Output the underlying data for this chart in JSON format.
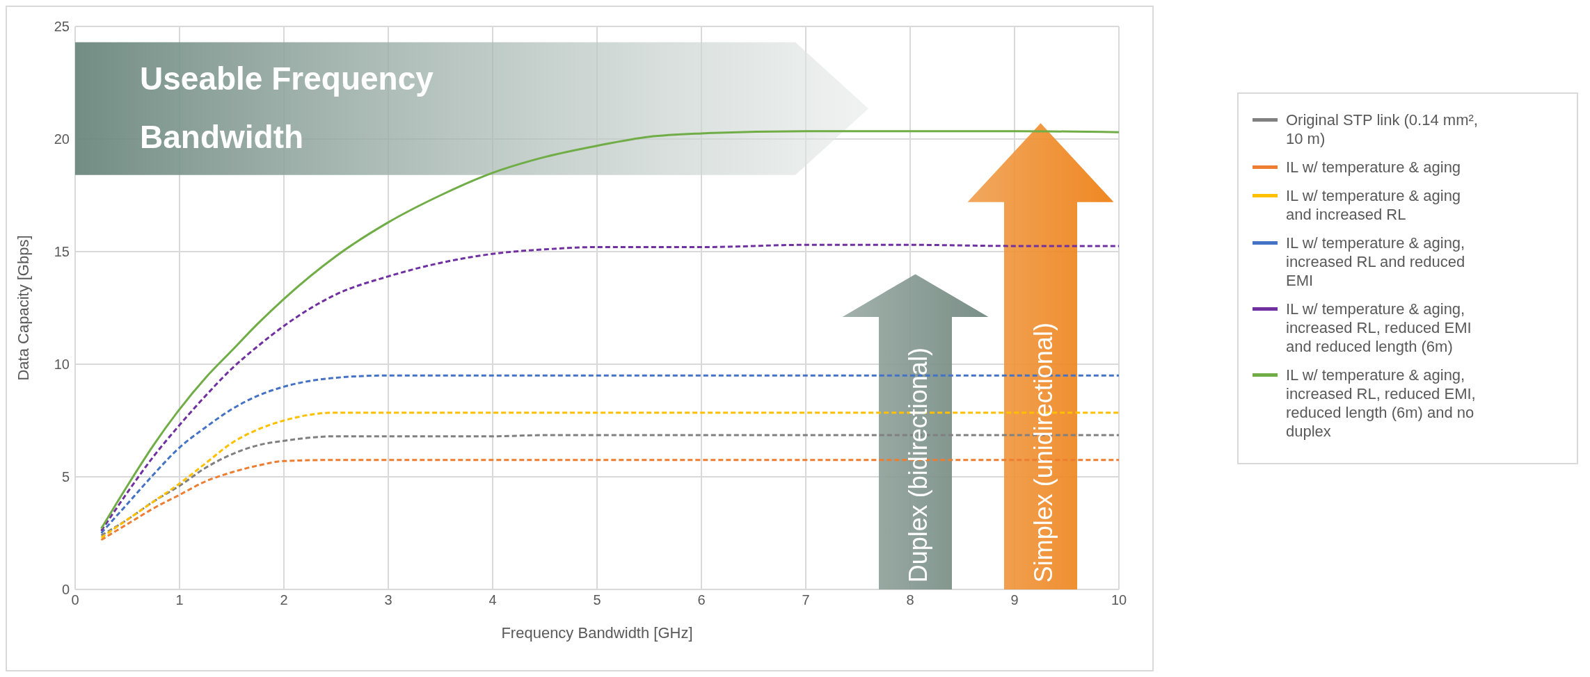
{
  "chart_data": {
    "type": "line",
    "xlabel": "Frequency Bandwidth [GHz]",
    "ylabel": "Data Capacity [Gbps]",
    "x": [
      0.25,
      0.5,
      0.75,
      1,
      1.25,
      1.5,
      1.75,
      2,
      2.5,
      3,
      3.5,
      4,
      4.5,
      5,
      5.5,
      6,
      7,
      8,
      9,
      10
    ],
    "series": [
      {
        "name": "Original STP link (0.14 mm², 10 m)",
        "color": "#808080",
        "line_style": "dashed",
        "values": [
          2.4,
          3.1,
          3.9,
          4.6,
          5.4,
          6.0,
          6.4,
          6.6,
          6.8,
          6.8,
          6.8,
          6.8,
          6.85,
          6.85,
          6.85,
          6.85,
          6.85,
          6.85,
          6.85,
          6.85
        ]
      },
      {
        "name": "IL w/ temperature & aging",
        "color": "#ed7d31",
        "line_style": "dashed",
        "values": [
          2.2,
          2.9,
          3.6,
          4.2,
          4.8,
          5.2,
          5.5,
          5.7,
          5.75,
          5.75,
          5.75,
          5.75,
          5.75,
          5.75,
          5.75,
          5.75,
          5.75,
          5.75,
          5.75,
          5.75
        ]
      },
      {
        "name": "IL w/ temperature & aging and increased RL",
        "color": "#ffc000",
        "line_style": "dashed",
        "values": [
          2.3,
          3.1,
          3.9,
          4.7,
          5.6,
          6.5,
          7.1,
          7.5,
          7.85,
          7.85,
          7.85,
          7.85,
          7.85,
          7.85,
          7.85,
          7.85,
          7.85,
          7.85,
          7.85,
          7.85
        ]
      },
      {
        "name": "IL w/ temperature & aging, increased RL and reduced EMI",
        "color": "#4472c4",
        "line_style": "dashed",
        "values": [
          2.5,
          3.8,
          5.1,
          6.3,
          7.2,
          8.0,
          8.6,
          9.0,
          9.4,
          9.5,
          9.5,
          9.5,
          9.5,
          9.5,
          9.5,
          9.5,
          9.5,
          9.5,
          9.5,
          9.5
        ]
      },
      {
        "name": "IL w/ temperature & aging, increased RL, reduced EMI and reduced length (6m)",
        "color": "#7030a0",
        "line_style": "dashed",
        "values": [
          2.6,
          4.3,
          5.9,
          7.3,
          8.6,
          9.8,
          10.8,
          11.7,
          13.1,
          13.9,
          14.5,
          14.9,
          15.1,
          15.2,
          15.2,
          15.2,
          15.3,
          15.3,
          15.25,
          15.25
        ]
      },
      {
        "name": "IL w/ temperature & aging, increased RL, reduced EMI, reduced length (6m) and no duplex",
        "color": "#70ad47",
        "line_style": "solid",
        "values": [
          2.7,
          4.6,
          6.4,
          8.0,
          9.4,
          10.6,
          11.8,
          12.9,
          14.8,
          16.3,
          17.5,
          18.5,
          19.2,
          19.7,
          20.1,
          20.25,
          20.35,
          20.35,
          20.35,
          20.3
        ]
      }
    ],
    "xlim": [
      0,
      10
    ],
    "xticks": [
      0,
      1,
      2,
      3,
      4,
      5,
      6,
      7,
      8,
      9,
      10
    ],
    "ylim": [
      0,
      25
    ],
    "yticks": [
      0,
      5,
      10,
      15,
      20,
      25
    ],
    "grid": true,
    "legend": "right",
    "marker": "none",
    "annotations": [
      "Useable Frequency Bandwidth",
      "Duplex (bidirectional)",
      "Simplex (unidirectional)"
    ]
  }
}
